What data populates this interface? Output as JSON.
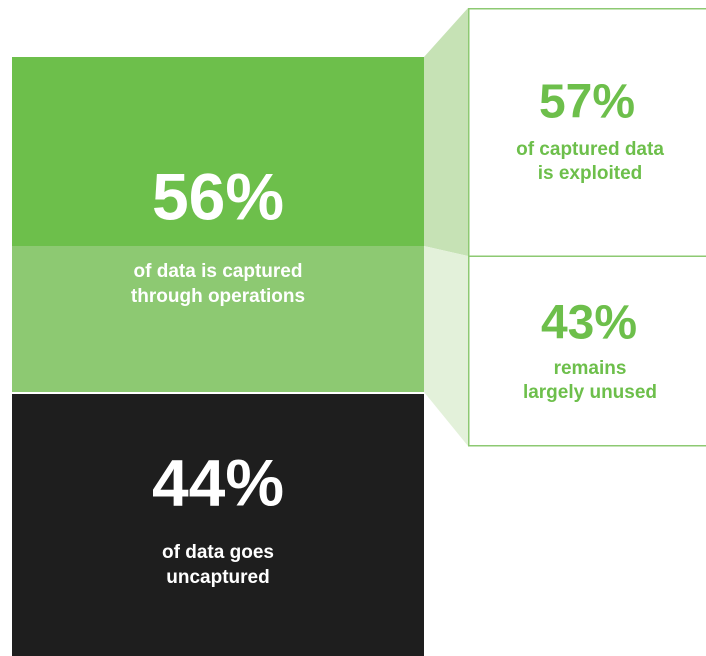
{
  "captured": {
    "value": "56%",
    "caption": [
      "of data is captured",
      "through operations"
    ]
  },
  "uncaptured": {
    "value": "44%",
    "caption": [
      "of data goes",
      "uncaptured"
    ]
  },
  "exploited": {
    "value": "57%",
    "caption": [
      "of captured data",
      "is exploited"
    ]
  },
  "unused": {
    "value": "43%",
    "caption": [
      "remains",
      "largely unused"
    ]
  }
}
